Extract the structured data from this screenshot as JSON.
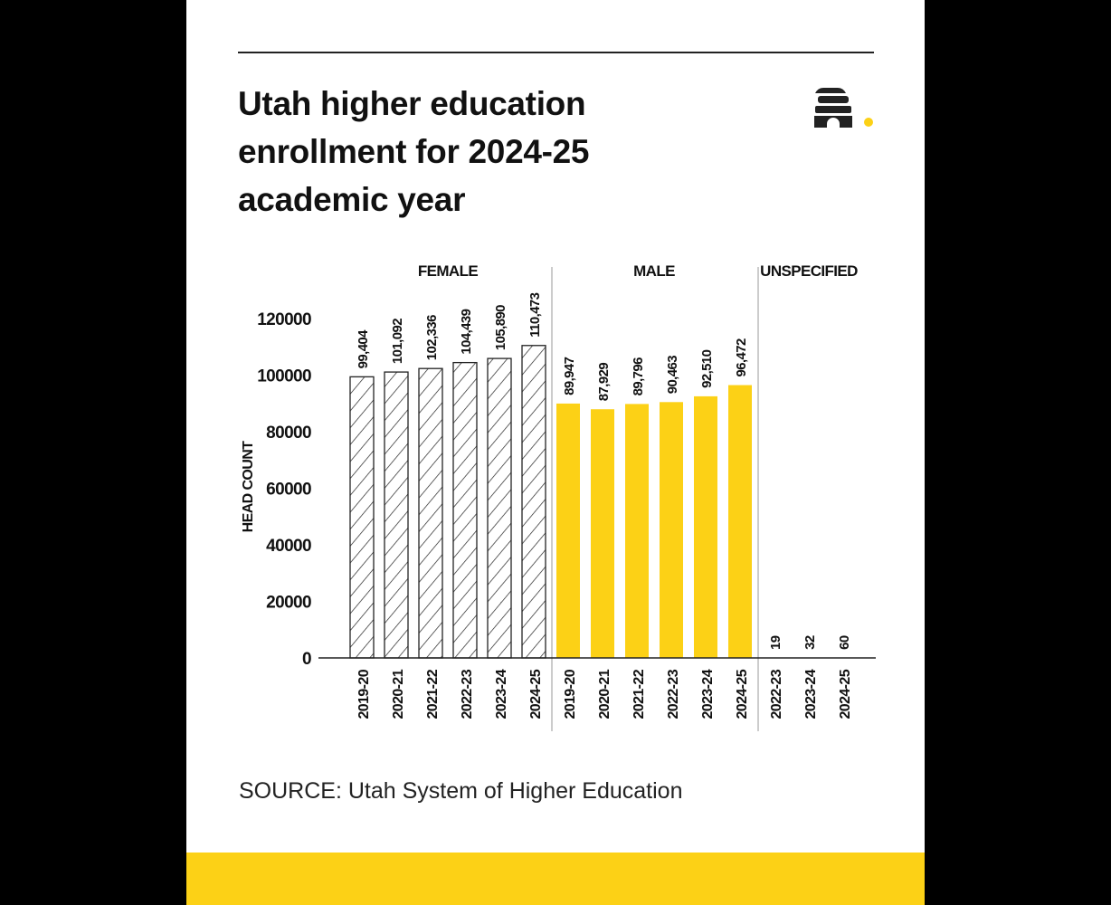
{
  "title": "Utah higher education enrollment for 2024-25 academic year",
  "source": "SOURCE: Utah System of Higher Education",
  "logo": "beehive-logo",
  "colors": {
    "male": "#fcd116",
    "female_fill": "#ffffff",
    "female_hatch": "#222222",
    "band": "#fcd116",
    "accent_dot": "#fcd116"
  },
  "chart_data": {
    "type": "bar",
    "title": "",
    "ylabel": "HEAD COUNT",
    "xlabel": "",
    "ylim": [
      0,
      120000
    ],
    "yticks": [
      "0",
      "20000",
      "40000",
      "60000",
      "80000",
      "100000",
      "120000"
    ],
    "grid": false,
    "groups": [
      {
        "name": "FEMALE",
        "style": "hatched",
        "categories": [
          "2019-20",
          "2020-21",
          "2021-22",
          "2022-23",
          "2023-24",
          "2024-25"
        ],
        "values": [
          99404,
          101092,
          102336,
          104439,
          105890,
          110473
        ],
        "labels": [
          "99,404",
          "101,092",
          "102,336",
          "104,439",
          "105,890",
          "110,473"
        ]
      },
      {
        "name": "MALE",
        "style": "yellow",
        "categories": [
          "2019-20",
          "2020-21",
          "2021-22",
          "2022-23",
          "2023-24",
          "2024-25"
        ],
        "values": [
          89947,
          87929,
          89796,
          90463,
          92510,
          96472
        ],
        "labels": [
          "89,947",
          "87,929",
          "89,796",
          "90,463",
          "92,510",
          "96,472"
        ]
      },
      {
        "name": "UNSPECIFIED",
        "style": "yellow",
        "categories": [
          "2022-23",
          "2023-24",
          "2024-25"
        ],
        "values": [
          19,
          32,
          60
        ],
        "labels": [
          "19",
          "32",
          "60"
        ]
      }
    ]
  }
}
